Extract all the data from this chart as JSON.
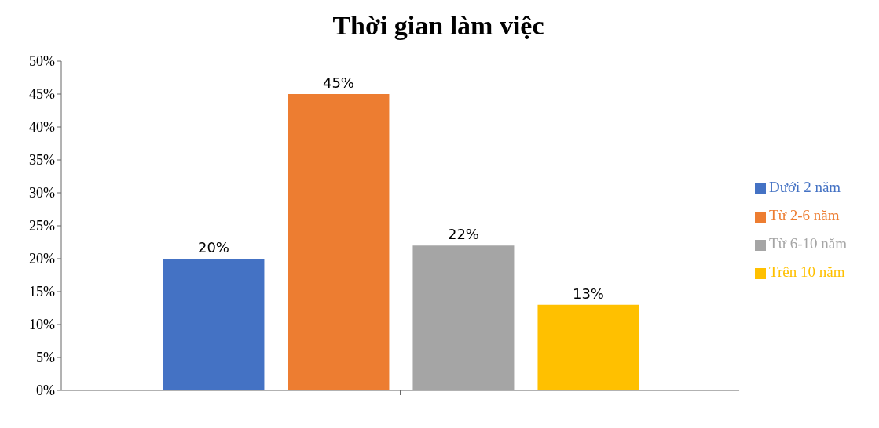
{
  "chart_data": {
    "type": "bar",
    "title": "Thời gian làm việc",
    "categories": [
      null
    ],
    "series": [
      {
        "name": "Dưới 2 năm",
        "color": "#4472c4",
        "values": [
          20
        ],
        "value_labels": [
          "20%"
        ]
      },
      {
        "name": "Từ 2-6 năm",
        "color": "#ed7d31",
        "values": [
          45
        ],
        "value_labels": [
          "45%"
        ]
      },
      {
        "name": "Từ 6-10 năm",
        "color": "#a5a5a5",
        "values": [
          22
        ],
        "value_labels": [
          "22%"
        ]
      },
      {
        "name": "Trên 10 năm",
        "color": "#ffc000",
        "values": [
          13
        ],
        "value_labels": [
          "13%"
        ]
      }
    ],
    "ylim": [
      0,
      50
    ],
    "yticks": [
      {
        "value": 0,
        "label": "0%"
      },
      {
        "value": 5,
        "label": "5%"
      },
      {
        "value": 10,
        "label": "10%"
      },
      {
        "value": 15,
        "label": "15%"
      },
      {
        "value": 20,
        "label": "20%"
      },
      {
        "value": 25,
        "label": "25%"
      },
      {
        "value": 30,
        "label": "30%"
      },
      {
        "value": 35,
        "label": "35%"
      },
      {
        "value": 40,
        "label": "40%"
      },
      {
        "value": 45,
        "label": "45%"
      },
      {
        "value": 50,
        "label": "50%"
      }
    ],
    "grid": false,
    "legend": "right"
  }
}
